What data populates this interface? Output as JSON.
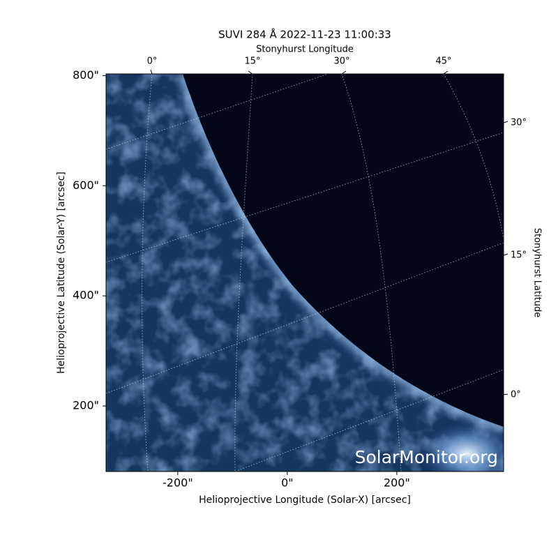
{
  "chart_data": {
    "type": "image",
    "title": "SUVI 284 Å 2022-11-23 11:00:33",
    "x_label": "Helioprojective Longitude (Solar-X) [arcsec]",
    "y_label": "Helioprojective Latitude (Solar-Y) [arcsec]",
    "top_label": "Stonyhurst Longitude",
    "right_label": "Stonyhurst Latitude",
    "xlim": [
      -331,
      395
    ],
    "ylim": [
      81,
      803
    ],
    "xticks": [
      {
        "value": -200,
        "label": "-200\""
      },
      {
        "value": 0,
        "label": "0\""
      },
      {
        "value": 200,
        "label": "200\""
      }
    ],
    "yticks": [
      {
        "value": 200,
        "label": "200\""
      },
      {
        "value": 400,
        "label": "400\""
      },
      {
        "value": 600,
        "label": "600\""
      },
      {
        "value": 800,
        "label": "800\""
      }
    ],
    "lon_ticks": [
      {
        "value": 0,
        "label": "0°"
      },
      {
        "value": 15,
        "label": "15°"
      },
      {
        "value": 30,
        "label": "30°"
      },
      {
        "value": 45,
        "label": "45°"
      }
    ],
    "lat_ticks": [
      {
        "value": 30,
        "label": "30°"
      },
      {
        "value": 15,
        "label": "15°"
      },
      {
        "value": 0,
        "label": "0°"
      }
    ],
    "watermark": "SolarMonitor.org"
  }
}
